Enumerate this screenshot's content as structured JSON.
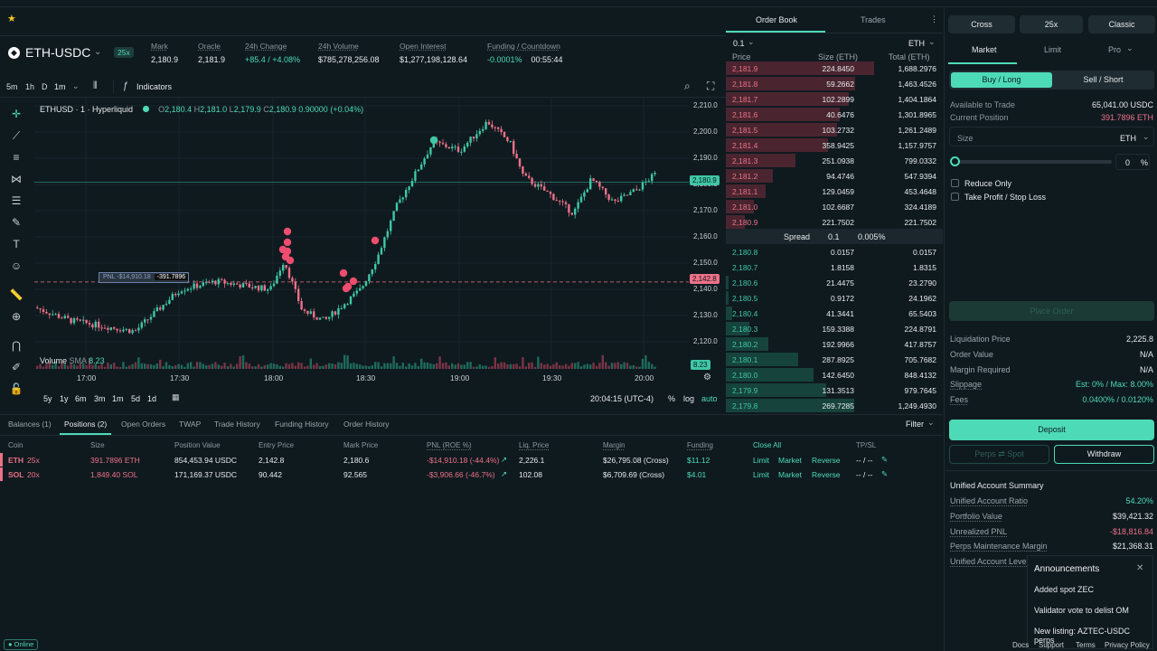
{
  "topbar": {
    "star_icon": "star-icon"
  },
  "market": {
    "symbol": "ETH-USDC",
    "leverage": "25x",
    "cols": [
      {
        "label": "Mark",
        "value": "2,180.9",
        "color": "#e6eaec"
      },
      {
        "label": "Oracle",
        "value": "2,181.9",
        "color": "#e6eaec"
      },
      {
        "label": "24h Change",
        "value": "+85.4 / +4.08%",
        "color": "#4ddbb7"
      },
      {
        "label": "24h Volume",
        "value": "$785,278,256.08",
        "color": "#e6eaec"
      },
      {
        "label": "Open Interest",
        "value": "$1,277,198,128.64",
        "color": "#e6eaec"
      },
      {
        "label": "Funding / Countdown",
        "value": "-0.0001%",
        "value2": "00:55:44",
        "color": "#4ddbb7"
      }
    ]
  },
  "chart_tools": {
    "intervals": [
      "5m",
      "1h",
      "D",
      "1m"
    ],
    "indicators": "Indicators"
  },
  "chart": {
    "legend": "ETHUSD · 1 · Hyperliquid",
    "ohlc": {
      "o_label": "O",
      "o": "2,180.4",
      "h_label": "H",
      "h": "2,181.0",
      "l_label": "L",
      "l": "2,179.9",
      "c_label": "C",
      "c": "2,180.9",
      "chg": "0.90000 (+0.04%)"
    },
    "volume_label": "Volume",
    "sma_label": "SMA",
    "sma_value": "8.23",
    "volume_tag": "8.23",
    "price_tag": "2,180.9",
    "entry_tag": "2,142.8",
    "pnl_tag": "PNL -$14,910.18",
    "size_tag": "-391.7896",
    "time_labels": [
      "17:00",
      "17:30",
      "18:00",
      "18:30",
      "19:00",
      "19:30",
      "20:00"
    ],
    "price_labels": [
      "2,210.0",
      "2,200.0",
      "2,190.0",
      "2,180.0",
      "2,170.0",
      "2,160.0",
      "2,150.0",
      "2,140.0",
      "2,130.0",
      "2,120.0"
    ],
    "ranges": [
      "5y",
      "1y",
      "6m",
      "3m",
      "1m",
      "5d",
      "1d"
    ],
    "clock": "20:04:15 (UTC-4)",
    "pct": "%",
    "log": "log",
    "auto": "auto"
  },
  "orderbook": {
    "tab_book": "Order Book",
    "tab_trades": "Trades",
    "tick": "0.1",
    "unit": "ETH",
    "h_price": "Price",
    "h_size": "Size (ETH)",
    "h_total": "Total (ETH)",
    "asks": [
      {
        "p": "2,181.9",
        "s": "224.8450",
        "t": "1,688.2976",
        "depth": 1.0
      },
      {
        "p": "2,181.8",
        "s": "59.2662",
        "t": "1,463.4526",
        "depth": 0.87
      },
      {
        "p": "2,181.7",
        "s": "102.2899",
        "t": "1,404.1864",
        "depth": 0.83
      },
      {
        "p": "2,181.6",
        "s": "40.6476",
        "t": "1,301.8965",
        "depth": 0.77
      },
      {
        "p": "2,181.5",
        "s": "103.2732",
        "t": "1,261.2489",
        "depth": 0.75
      },
      {
        "p": "2,181.4",
        "s": "358.9425",
        "t": "1,157.9757",
        "depth": 0.69
      },
      {
        "p": "2,181.3",
        "s": "251.0938",
        "t": "799.0332",
        "depth": 0.47
      },
      {
        "p": "2,181.2",
        "s": "94.4746",
        "t": "547.9394",
        "depth": 0.32
      },
      {
        "p": "2,181.1",
        "s": "129.0459",
        "t": "453.4648",
        "depth": 0.27
      },
      {
        "p": "2,181.0",
        "s": "102.6687",
        "t": "324.4189",
        "depth": 0.19
      },
      {
        "p": "2,180.9",
        "s": "221.7502",
        "t": "221.7502",
        "depth": 0.13
      }
    ],
    "spread_label": "Spread",
    "spread": "0.1",
    "spread_pct": "0.005%",
    "bids": [
      {
        "p": "2,180.8",
        "s": "0.0157",
        "t": "0.0157",
        "depth": 0.0
      },
      {
        "p": "2,180.7",
        "s": "1.8158",
        "t": "1.8315",
        "depth": 0.0
      },
      {
        "p": "2,180.6",
        "s": "21.4475",
        "t": "23.2790",
        "depth": 0.02
      },
      {
        "p": "2,180.5",
        "s": "0.9172",
        "t": "24.1962",
        "depth": 0.02
      },
      {
        "p": "2,180.4",
        "s": "41.3441",
        "t": "65.5403",
        "depth": 0.05
      },
      {
        "p": "2,180.3",
        "s": "159.3388",
        "t": "224.8791",
        "depth": 0.18
      },
      {
        "p": "2,180.2",
        "s": "192.9966",
        "t": "417.8757",
        "depth": 0.33
      },
      {
        "p": "2,180.1",
        "s": "287.8925",
        "t": "705.7682",
        "depth": 0.56
      },
      {
        "p": "2,180.0",
        "s": "142.6450",
        "t": "848.4132",
        "depth": 0.68
      },
      {
        "p": "2,179.9",
        "s": "131.3513",
        "t": "979.7645",
        "depth": 0.78
      },
      {
        "p": "2,179.8",
        "s": "269.7285",
        "t": "1,249.4930",
        "depth": 1.0
      }
    ]
  },
  "trade": {
    "margin_mode": "Cross",
    "leverage": "25x",
    "mode": "Classic",
    "tabs": [
      "Market",
      "Limit",
      "Pro"
    ],
    "buy": "Buy / Long",
    "sell": "Sell / Short",
    "available_label": "Available to Trade",
    "available": "65,041.00 USDC",
    "position_label": "Current Position",
    "position": "391.7896 ETH",
    "size_placeholder": "Size",
    "size_unit": "ETH",
    "slider_value": "0",
    "slider_unit": "%",
    "reduce_only": "Reduce Only",
    "tpsl": "Take Profit / Stop Loss",
    "place_order": "Place Order",
    "info": [
      {
        "k": "Liquidation Price",
        "v": "2,225.8"
      },
      {
        "k": "Order Value",
        "v": "N/A"
      },
      {
        "k": "Margin Required",
        "v": "N/A"
      },
      {
        "k": "Slippage",
        "v": "Est: 0% / Max: 8.00%",
        "accent": true
      },
      {
        "k": "Fees",
        "v": "0.0400% / 0.0120%",
        "accent": true
      }
    ],
    "deposit": "Deposit",
    "perps_spot": "Perps ⇄ Spot",
    "withdraw": "Withdraw",
    "summary_title": "Unified Account Summary",
    "summary": [
      {
        "k": "Unified Account Ratio",
        "v": "54.20%",
        "color": "#4ddbb7"
      },
      {
        "k": "Portfolio Value",
        "v": "$39,421.32",
        "color": "#e6eaec"
      },
      {
        "k": "Unrealized PNL",
        "v": "-$18,816.84",
        "color": "#ed7188"
      },
      {
        "k": "Perps Maintenance Margin",
        "v": "$21,368.31",
        "color": "#e6eaec"
      },
      {
        "k": "Unified Account Lever",
        "v": "",
        "color": "#e6eaec"
      }
    ]
  },
  "positions": {
    "tabs": [
      "Balances (1)",
      "Positions (2)",
      "Open Orders",
      "TWAP",
      "Trade History",
      "Funding History",
      "Order History"
    ],
    "filter": "Filter",
    "headers": [
      "Coin",
      "Size",
      "Position Value",
      "Entry Price",
      "Mark Price",
      "PNL (ROE %)",
      "Liq. Price",
      "Margin",
      "Funding",
      "Close All",
      "TP/SL"
    ],
    "rows": [
      {
        "coin": "ETH",
        "lev": "25x",
        "size": "391.7896 ETH",
        "value": "854,453.94 USDC",
        "entry": "2,142.8",
        "mark": "2,180.6",
        "pnl": "-$14,910.18 (-44.4%)",
        "liq": "2,226.1",
        "margin": "$26,795.08 (Cross)",
        "funding": "$11.12",
        "limit": "Limit",
        "market": "Market",
        "reverse": "Reverse",
        "tpsl": "-- / --"
      },
      {
        "coin": "SOL",
        "lev": "20x",
        "size": "1,849.40 SOL",
        "value": "171,169.37 USDC",
        "entry": "90.442",
        "mark": "92.565",
        "pnl": "-$3,906.66 (-46.7%)",
        "liq": "102.08",
        "margin": "$6,709.69 (Cross)",
        "funding": "$4.01",
        "limit": "Limit",
        "market": "Market",
        "reverse": "Reverse",
        "tpsl": "-- / --"
      }
    ]
  },
  "announcements": {
    "title": "Announcements",
    "items": [
      "Added spot ZEC",
      "Validator vote to delist OM",
      "New listing: AZTEC-USDC perps"
    ]
  },
  "footer": {
    "status": "Online",
    "links": [
      "Docs",
      "Support",
      "Terms",
      "Privacy Policy"
    ]
  }
}
